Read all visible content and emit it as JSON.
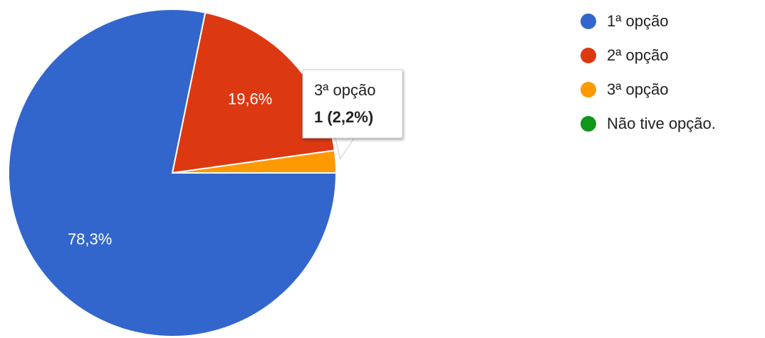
{
  "chart_data": {
    "type": "pie",
    "categories": [
      "1ª opção",
      "2ª opção",
      "3ª opção",
      "Não tive opção."
    ],
    "values": [
      78.3,
      19.6,
      2.2,
      0
    ],
    "value_labels": [
      "78,3%",
      "19,6%",
      null,
      null
    ],
    "colors": [
      "#3366cc",
      "#dc3912",
      "#ff9900",
      "#109618"
    ],
    "legend": "right",
    "tooltip": {
      "category": 2,
      "text": "1 (2,2%)"
    }
  }
}
